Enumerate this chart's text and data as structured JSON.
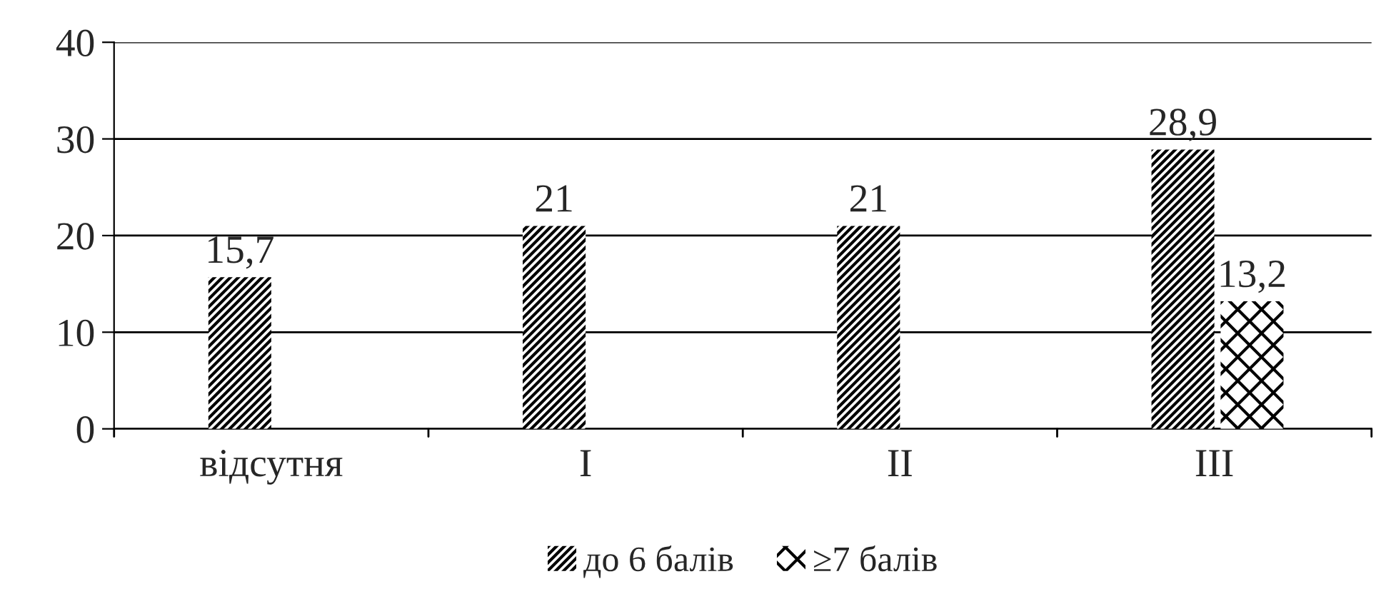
{
  "chart_data": {
    "type": "bar",
    "categories": [
      "відсутня",
      "I",
      "II",
      "III"
    ],
    "series": [
      {
        "name": "до 6 балів",
        "color": "#000000",
        "values": [
          15.7,
          21,
          21,
          28.9
        ],
        "value_labels": [
          "15,7",
          "21",
          "21",
          "28,9"
        ]
      },
      {
        "name": "≥7 балів",
        "color": "#000000",
        "values": [
          null,
          null,
          null,
          13.2
        ],
        "value_labels": [
          null,
          null,
          null,
          "13,2"
        ]
      }
    ],
    "ylim": [
      0,
      40
    ],
    "yticks": [
      0,
      10,
      20,
      30,
      40
    ],
    "grid": "y",
    "legend": "bottom"
  }
}
